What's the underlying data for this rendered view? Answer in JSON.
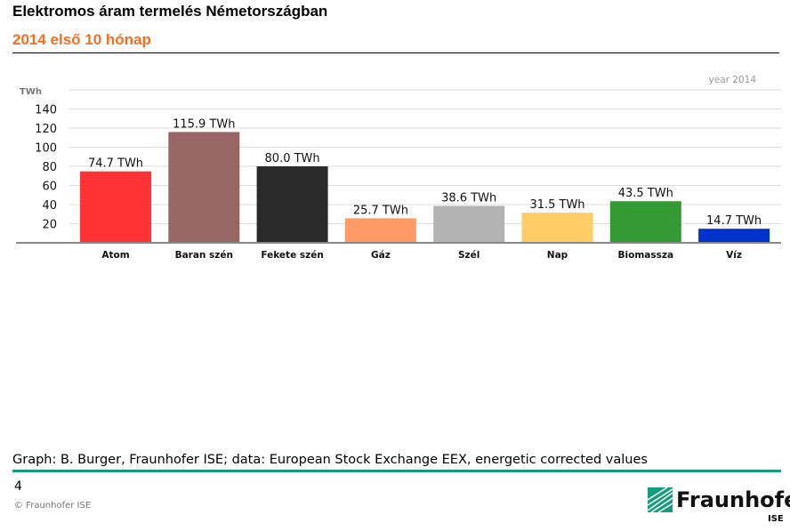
{
  "header": {
    "title": "Elektromos áram termelés Németországban",
    "subtitle": "2014 első 10 hónap"
  },
  "chart_data": {
    "type": "bar",
    "categories": [
      "Atom",
      "Baran szén",
      "Fekete szén",
      "Gáz",
      "Szél",
      "Nap",
      "Biomassza",
      "Víz"
    ],
    "values": [
      74.7,
      115.9,
      80.0,
      25.7,
      38.6,
      31.5,
      43.5,
      14.7
    ],
    "data_labels": [
      "74.7 TWh",
      "115.9 TWh",
      "80.0 TWh",
      "25.7 TWh",
      "38.6 TWh",
      "31.5 TWh",
      "43.5 TWh",
      "14.7 TWh"
    ],
    "colors": [
      "#ff3333",
      "#996666",
      "#2a2a2a",
      "#ff9966",
      "#b3b3b3",
      "#ffcc66",
      "#339933",
      "#0033cc"
    ],
    "ylabel": "TWh",
    "yticks": [
      20,
      40,
      60,
      80,
      100,
      120,
      140
    ],
    "ylim": [
      0,
      160
    ],
    "annotation": "year 2014",
    "grid": true
  },
  "footer": {
    "source": "Graph: B. Burger, Fraunhofer ISE; data: European Stock Exchange EEX, energetic corrected values",
    "page": "4",
    "copyright": "© Fraunhofer ISE",
    "logo_name": "Fraunhofer",
    "logo_sub": "ISE"
  }
}
